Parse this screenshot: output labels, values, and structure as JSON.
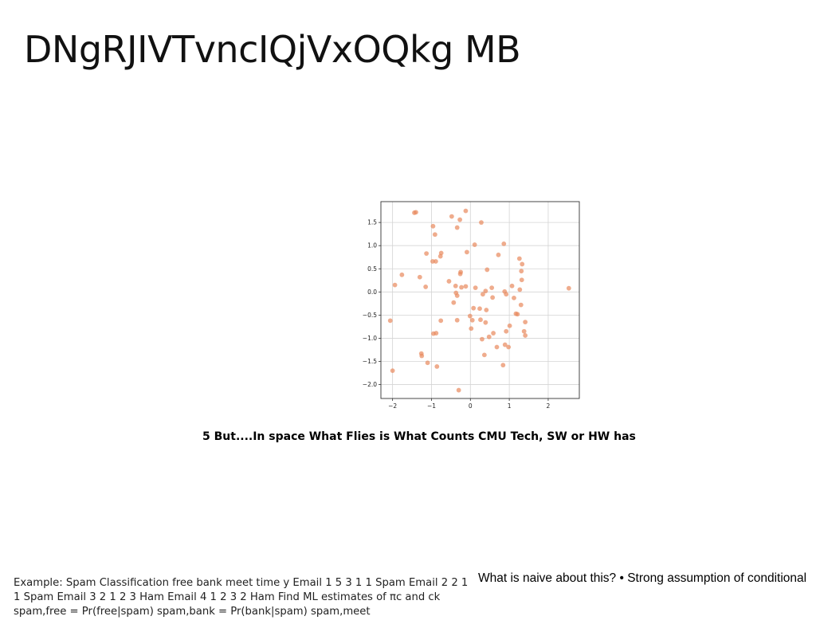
{
  "slide": {
    "title": "DNgRJIVTvncIQjVxOQkg MB",
    "caption": "5 But....In space What Flies is What Counts CMU Tech, SW or HW has",
    "example_text": "Example: Spam Classification free bank meet time y Email 1 5 3 1 1 Spam Email 2 2 1 1 Spam Email 3 2 1 2 3 Ham Email 4 1 2 3 2 Ham Find ML estimates of πc and \u0001ck \u0001spam,free = Pr(free|spam) \u0001spam,bank = Pr(bank|spam) \u0001spam,meet",
    "naive_text": "What is naive about this? • Strong assumption of conditional"
  },
  "chart_data": {
    "type": "scatter",
    "title": "",
    "xlabel": "",
    "ylabel": "",
    "xlim": [
      -2.3,
      2.8
    ],
    "ylim": [
      -2.3,
      1.95
    ],
    "xticks": [
      -2,
      -1,
      0,
      1,
      2
    ],
    "xtick_labels": [
      "−2",
      "−1",
      "0",
      "1",
      "2"
    ],
    "yticks": [
      -2.0,
      -1.5,
      -1.0,
      -0.5,
      0.0,
      0.5,
      1.0,
      1.5
    ],
    "ytick_labels": [
      "−2.0",
      "−1.5",
      "−1.0",
      "−0.5",
      "0.0",
      "0.5",
      "1.0",
      "1.5"
    ],
    "grid": true,
    "color": "#e8895c",
    "points": [
      [
        -1.44,
        1.71
      ],
      [
        -1.4,
        1.72
      ],
      [
        -0.48,
        1.63
      ],
      [
        -0.27,
        1.56
      ],
      [
        -0.12,
        1.75
      ],
      [
        0.28,
        1.5
      ],
      [
        -0.96,
        1.42
      ],
      [
        -0.34,
        1.39
      ],
      [
        -0.91,
        1.24
      ],
      [
        0.11,
        1.02
      ],
      [
        0.86,
        1.04
      ],
      [
        -1.13,
        0.83
      ],
      [
        -0.75,
        0.84
      ],
      [
        -0.77,
        0.77
      ],
      [
        -0.09,
        0.86
      ],
      [
        0.72,
        0.8
      ],
      [
        -0.97,
        0.66
      ],
      [
        -0.89,
        0.66
      ],
      [
        1.26,
        0.72
      ],
      [
        1.33,
        0.6
      ],
      [
        -1.76,
        0.37
      ],
      [
        -1.3,
        0.32
      ],
      [
        -0.25,
        0.43
      ],
      [
        -0.26,
        0.39
      ],
      [
        0.43,
        0.48
      ],
      [
        1.31,
        0.45
      ],
      [
        -0.55,
        0.23
      ],
      [
        1.32,
        0.26
      ],
      [
        -1.94,
        0.15
      ],
      [
        -1.15,
        0.11
      ],
      [
        -0.38,
        0.13
      ],
      [
        -0.23,
        0.1
      ],
      [
        -0.12,
        0.12
      ],
      [
        0.13,
        0.09
      ],
      [
        0.55,
        0.09
      ],
      [
        1.07,
        0.13
      ],
      [
        2.53,
        0.08
      ],
      [
        -0.37,
        -0.02
      ],
      [
        0.39,
        0.02
      ],
      [
        0.88,
        0.01
      ],
      [
        1.27,
        0.05
      ],
      [
        -0.34,
        -0.08
      ],
      [
        0.32,
        -0.05
      ],
      [
        0.57,
        -0.12
      ],
      [
        0.92,
        -0.05
      ],
      [
        1.12,
        -0.13
      ],
      [
        -0.43,
        -0.23
      ],
      [
        1.3,
        -0.28
      ],
      [
        0.08,
        -0.35
      ],
      [
        0.24,
        -0.36
      ],
      [
        0.41,
        -0.39
      ],
      [
        1.17,
        -0.47
      ],
      [
        1.21,
        -0.48
      ],
      [
        -2.06,
        -0.62
      ],
      [
        -0.76,
        -0.62
      ],
      [
        -0.34,
        -0.61
      ],
      [
        -0.01,
        -0.52
      ],
      [
        0.05,
        -0.61
      ],
      [
        0.26,
        -0.6
      ],
      [
        0.39,
        -0.66
      ],
      [
        1.41,
        -0.65
      ],
      [
        0.02,
        -0.79
      ],
      [
        1.01,
        -0.73
      ],
      [
        -0.95,
        -0.9
      ],
      [
        -0.88,
        -0.89
      ],
      [
        0.59,
        -0.89
      ],
      [
        0.92,
        -0.85
      ],
      [
        1.38,
        -0.85
      ],
      [
        1.41,
        -0.94
      ],
      [
        0.3,
        -1.02
      ],
      [
        0.48,
        -0.97
      ],
      [
        -1.26,
        -1.33
      ],
      [
        -1.25,
        -1.38
      ],
      [
        0.68,
        -1.19
      ],
      [
        0.89,
        -1.14
      ],
      [
        0.98,
        -1.19
      ],
      [
        0.36,
        -1.36
      ],
      [
        -1.1,
        -1.53
      ],
      [
        -0.86,
        -1.61
      ],
      [
        0.84,
        -1.58
      ],
      [
        -2.0,
        -1.7
      ],
      [
        -0.3,
        -2.12
      ]
    ]
  }
}
